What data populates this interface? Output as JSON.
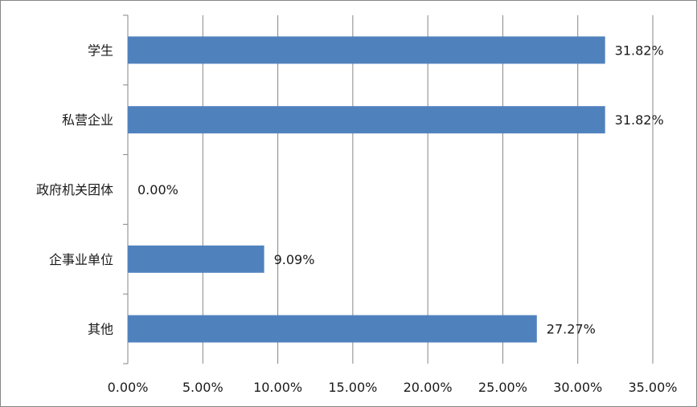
{
  "chart_data": {
    "type": "bar",
    "orientation": "horizontal",
    "categories": [
      "学生",
      "私营企业",
      "政府机关团体",
      "企事业单位",
      "其他"
    ],
    "values": [
      31.82,
      31.82,
      0.0,
      9.09,
      27.27
    ],
    "value_labels": [
      "31.82%",
      "31.82%",
      "0.00%",
      "9.09%",
      "27.27%"
    ],
    "x_ticks": [
      "0.00%",
      "5.00%",
      "10.00%",
      "15.00%",
      "20.00%",
      "25.00%",
      "30.00%",
      "35.00%"
    ],
    "xlim": [
      0,
      35
    ],
    "grid": "vertical",
    "legend": "none",
    "title": "",
    "xlabel": "",
    "ylabel": "",
    "colors": {
      "bar": "#4F81BD",
      "grid": "#868686",
      "axis": "#868686",
      "text": "#1a1a1a"
    }
  }
}
